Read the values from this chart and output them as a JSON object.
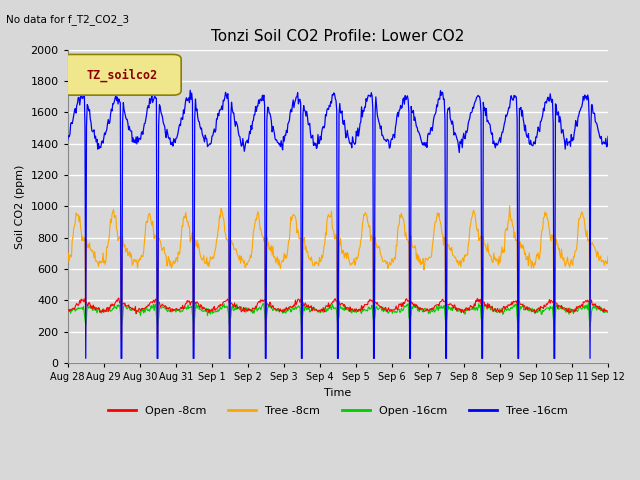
{
  "title": "Tonzi Soil CO2 Profile: Lower CO2",
  "subtitle": "No data for f_T2_CO2_3",
  "xlabel": "Time",
  "ylabel": "Soil CO2 (ppm)",
  "ylim": [
    0,
    2000
  ],
  "legend_label": "TZ_soilco2",
  "series_labels": [
    "Open -8cm",
    "Tree -8cm",
    "Open -16cm",
    "Tree -16cm"
  ],
  "series_colors": [
    "#ff0000",
    "#ffa500",
    "#00cc00",
    "#0000ff"
  ],
  "x_tick_labels": [
    "Aug 28",
    "Aug 29",
    "Aug 30",
    "Aug 31",
    "Sep 1",
    "Sep 2",
    "Sep 3",
    "Sep 4",
    "Sep 5",
    "Sep 6",
    "Sep 7",
    "Sep 8",
    "Sep 9",
    "Sep 10",
    "Sep 11",
    "Sep 12"
  ],
  "background_color": "#d8d8d8",
  "plot_bg_color": "#d8d8d8",
  "grid_color": "#ffffff",
  "title_fontsize": 11,
  "axis_fontsize": 8,
  "tick_fontsize": 8,
  "n_days": 15,
  "n_pts_per_day": 48
}
